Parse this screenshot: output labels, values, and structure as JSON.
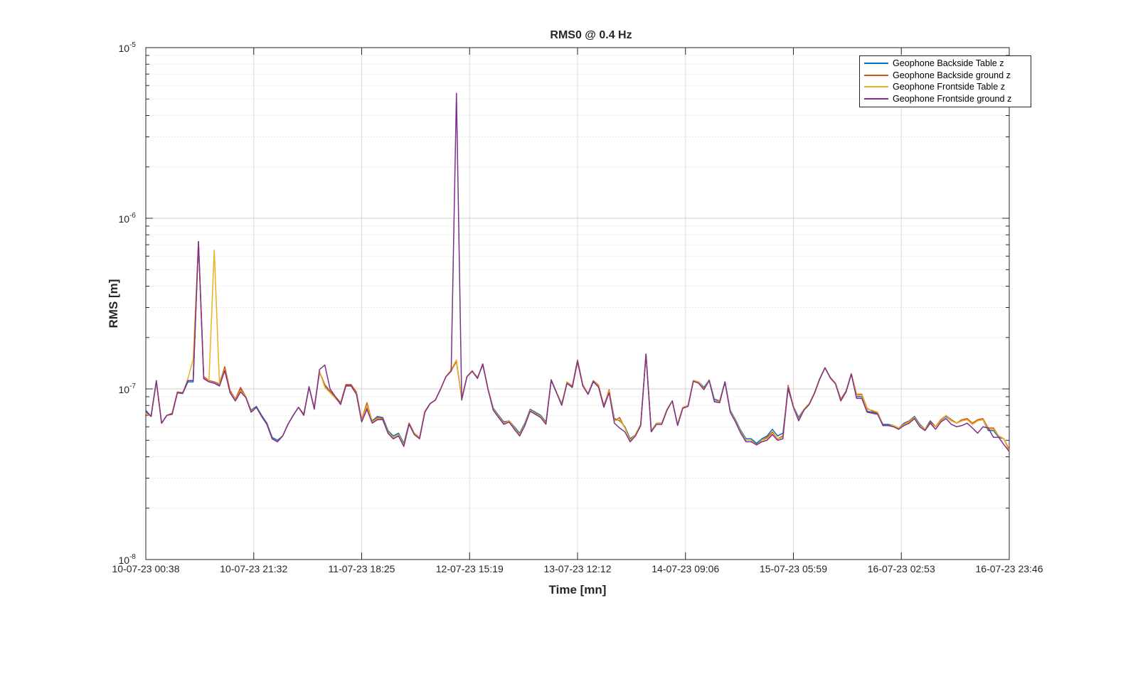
{
  "chart_data": {
    "type": "line",
    "title": "RMS0 @ 0.4 Hz",
    "xlabel": "Time [mn]",
    "ylabel": "RMS [m]",
    "y_scale": "log",
    "ylim": [
      1e-08,
      1e-05
    ],
    "y_ticks": [
      {
        "value": 1e-08,
        "base": "10",
        "exp": "-8"
      },
      {
        "value": 1e-07,
        "base": "10",
        "exp": "-7"
      },
      {
        "value": 1e-06,
        "base": "10",
        "exp": "-6"
      },
      {
        "value": 1e-05,
        "base": "10",
        "exp": "-5"
      }
    ],
    "x_ticks": [
      "10-07-23 00:38",
      "10-07-23 21:32",
      "11-07-23 18:25",
      "12-07-23 15:19",
      "13-07-23 12:12",
      "14-07-23 09:06",
      "15-07-23 05:59",
      "16-07-23 02:53",
      "16-07-23 23:46"
    ],
    "x_start": "10-07-23 00:38",
    "x_end": "16-07-23 23:46",
    "grid": true,
    "legend_position": "top-right",
    "samples_per_series": 160,
    "series": [
      {
        "name": "Geophone Backside Table z",
        "color": "#0072BD",
        "values": [
          7.5e-08,
          6.9e-08,
          1.1e-07,
          6.3e-08,
          7e-08,
          7.1e-08,
          9.5e-08,
          9.4e-08,
          1.1e-07,
          1.1e-07,
          7.3e-07,
          1.15e-07,
          1.1e-07,
          1.08e-07,
          1.05e-07,
          1.3e-07,
          9.6e-08,
          8.6e-08,
          1e-07,
          9e-08,
          7.5e-08,
          7.9e-08,
          7e-08,
          6.3e-08,
          5.2e-08,
          5e-08,
          5.3e-08,
          6.2e-08,
          7e-08,
          7.8e-08,
          7.1e-08,
          1.02e-07,
          7.8e-08,
          1.25e-07,
          1.05e-07,
          9.6e-08,
          9e-08,
          8.3e-08,
          1.05e-07,
          1.05e-07,
          9.5e-08,
          6.5e-08,
          7.8e-08,
          6.5e-08,
          6.9e-08,
          6.8e-08,
          5.7e-08,
          5.3e-08,
          5.5e-08,
          4.8e-08,
          6.3e-08,
          5.5e-08,
          5.2e-08,
          7.4e-08,
          8.2e-08,
          8.6e-08,
          1e-07,
          1.18e-07,
          1.28e-07,
          1.45e-07,
          8.8e-08,
          1.18e-07,
          1.27e-07,
          1.17e-07,
          1.38e-07,
          1e-07,
          7.7e-08,
          7e-08,
          6.4e-08,
          6.5e-08,
          6e-08,
          5.5e-08,
          6.3e-08,
          7.6e-08,
          7.3e-08,
          7e-08,
          6.4e-08,
          1.12e-07,
          9.5e-08,
          8.2e-08,
          1.08e-07,
          1.02e-07,
          1.45e-07,
          1.05e-07,
          9.3e-08,
          1.1e-07,
          1.03e-07,
          8e-08,
          9.7e-08,
          6.7e-08,
          6.5e-08,
          6e-08,
          5.1e-08,
          5.4e-08,
          6.2e-08,
          1.6e-07,
          5.7e-08,
          6.3e-08,
          6.3e-08,
          7.6e-08,
          8.5e-08,
          6.2e-08,
          7.8e-08,
          8e-08,
          1.12e-07,
          1.1e-07,
          1.02e-07,
          1.13e-07,
          8.7e-08,
          8.5e-08,
          1.1e-07,
          7.5e-08,
          6.6e-08,
          5.7e-08,
          5.1e-08,
          5.1e-08,
          4.8e-08,
          5.1e-08,
          5.3e-08,
          5.8e-08,
          5.3e-08,
          5.5e-08,
          1e-07,
          7.9e-08,
          6.8e-08,
          7.6e-08,
          8.2e-08,
          9.5e-08,
          1.15e-07,
          1.33e-07,
          1.17e-07,
          1.08e-07,
          8.7e-08,
          9.7e-08,
          1.23e-07,
          9e-08,
          9e-08,
          7.4e-08,
          7.3e-08,
          7.2e-08,
          6.2e-08,
          6.2e-08,
          6.1e-08,
          5.9e-08,
          6.3e-08,
          6.5e-08,
          6.9e-08,
          6.2e-08,
          5.8e-08,
          6.5e-08,
          6e-08,
          6.5e-08,
          6.9e-08,
          6.5e-08,
          6.3e-08,
          6.5e-08,
          6.6e-08,
          6.2e-08,
          6.5e-08,
          6.6e-08,
          5.7e-08,
          5.7e-08,
          5.2e-08,
          5.1e-08,
          4.3e-08
        ]
      },
      {
        "name": "Geophone Backside ground z",
        "color": "#D95319",
        "values": [
          7.3e-08,
          6.9e-08,
          1.1e-07,
          6.3e-08,
          7e-08,
          7.2e-08,
          9.6e-08,
          9.5e-08,
          1.12e-07,
          1.12e-07,
          7.3e-07,
          1.18e-07,
          1.12e-07,
          1.1e-07,
          1.07e-07,
          1.35e-07,
          9.8e-08,
          8.7e-08,
          1.02e-07,
          9e-08,
          7.4e-08,
          7.8e-08,
          6.9e-08,
          6.2e-08,
          5.1e-08,
          4.9e-08,
          5.3e-08,
          6.2e-08,
          7e-08,
          7.8e-08,
          7.1e-08,
          1.02e-07,
          7.8e-08,
          1.26e-07,
          1.06e-07,
          9.7e-08,
          9e-08,
          8.3e-08,
          1.06e-07,
          1.06e-07,
          9.6e-08,
          6.6e-08,
          8.3e-08,
          6.4e-08,
          6.8e-08,
          6.7e-08,
          5.6e-08,
          5.2e-08,
          5.4e-08,
          4.7e-08,
          6.3e-08,
          5.5e-08,
          5.2e-08,
          7.4e-08,
          8.2e-08,
          8.6e-08,
          1e-07,
          1.18e-07,
          1.28e-07,
          1.45e-07,
          8.8e-08,
          1.18e-07,
          1.28e-07,
          1.16e-07,
          1.4e-07,
          1e-07,
          7.6e-08,
          6.9e-08,
          6.3e-08,
          6.5e-08,
          5.9e-08,
          5.4e-08,
          6.2e-08,
          7.5e-08,
          7.2e-08,
          6.9e-08,
          6.3e-08,
          1.13e-07,
          9.6e-08,
          8.1e-08,
          1.1e-07,
          1.04e-07,
          1.48e-07,
          1.06e-07,
          9.4e-08,
          1.12e-07,
          1.05e-07,
          7.9e-08,
          9.9e-08,
          6.5e-08,
          6.8e-08,
          5.9e-08,
          5e-08,
          5.4e-08,
          6.2e-08,
          1.6e-07,
          5.7e-08,
          6.3e-08,
          6.3e-08,
          7.6e-08,
          8.5e-08,
          6.2e-08,
          7.8e-08,
          8e-08,
          1.12e-07,
          1.1e-07,
          1e-07,
          1.13e-07,
          8.5e-08,
          8.5e-08,
          1.1e-07,
          7.4e-08,
          6.5e-08,
          5.6e-08,
          5e-08,
          5e-08,
          4.7e-08,
          5e-08,
          5.2e-08,
          5.6e-08,
          5.1e-08,
          5.3e-08,
          1.05e-07,
          7.9e-08,
          6.6e-08,
          7.6e-08,
          8.2e-08,
          9.5e-08,
          1.15e-07,
          1.33e-07,
          1.17e-07,
          1.08e-07,
          8.7e-08,
          9.7e-08,
          1.23e-07,
          9.3e-08,
          9.3e-08,
          7.7e-08,
          7.4e-08,
          7.3e-08,
          6.1e-08,
          6.1e-08,
          6.1e-08,
          5.9e-08,
          6.2e-08,
          6.5e-08,
          6.8e-08,
          6.1e-08,
          5.8e-08,
          6.4e-08,
          6e-08,
          6.6e-08,
          7e-08,
          6.6e-08,
          6.3e-08,
          6.6e-08,
          6.7e-08,
          6.3e-08,
          6.6e-08,
          6.7e-08,
          5.9e-08,
          5.9e-08,
          5.3e-08,
          5.1e-08,
          4.4e-08
        ]
      },
      {
        "name": "Geophone Frontside Table z",
        "color": "#EDB120",
        "values": [
          7.2e-08,
          6.9e-08,
          1.1e-07,
          6.3e-08,
          7e-08,
          7.1e-08,
          9.5e-08,
          9.4e-08,
          1.15e-07,
          1.5e-07,
          7.3e-07,
          1.15e-07,
          1.12e-07,
          6.5e-07,
          1.05e-07,
          1.3e-07,
          9.6e-08,
          8.6e-08,
          9.8e-08,
          9e-08,
          7.4e-08,
          7.8e-08,
          6.9e-08,
          6.2e-08,
          5.1e-08,
          4.9e-08,
          5.3e-08,
          6.2e-08,
          7e-08,
          7.8e-08,
          7e-08,
          1.02e-07,
          7.8e-08,
          1.27e-07,
          1.02e-07,
          9.5e-08,
          8.8e-08,
          8.2e-08,
          1.04e-07,
          1.04e-07,
          9.4e-08,
          6.5e-08,
          8e-08,
          6.4e-08,
          6.7e-08,
          6.6e-08,
          5.6e-08,
          5.2e-08,
          5.4e-08,
          4.7e-08,
          6.2e-08,
          5.5e-08,
          5.2e-08,
          7.4e-08,
          8.2e-08,
          8.6e-08,
          1e-07,
          1.18e-07,
          1.3e-07,
          1.48e-07,
          8.8e-08,
          1.18e-07,
          1.28e-07,
          1.16e-07,
          1.4e-07,
          1e-07,
          7.6e-08,
          6.9e-08,
          6.3e-08,
          6.5e-08,
          5.9e-08,
          5.4e-08,
          6.2e-08,
          7.5e-08,
          7.2e-08,
          6.9e-08,
          6.3e-08,
          1.13e-07,
          9.6e-08,
          8.1e-08,
          1.1e-07,
          1.02e-07,
          1.45e-07,
          1.05e-07,
          9.4e-08,
          1.12e-07,
          1.03e-07,
          7.8e-08,
          9.7e-08,
          6.5e-08,
          6.6e-08,
          5.9e-08,
          5e-08,
          5.4e-08,
          6.2e-08,
          1.6e-07,
          5.7e-08,
          6.3e-08,
          6.3e-08,
          7.6e-08,
          8.5e-08,
          6.2e-08,
          7.8e-08,
          8e-08,
          1.12e-07,
          1.1e-07,
          1e-07,
          1.13e-07,
          8.5e-08,
          8.4e-08,
          1.1e-07,
          7.4e-08,
          6.5e-08,
          5.6e-08,
          5e-08,
          5e-08,
          4.7e-08,
          5e-08,
          5.1e-08,
          5.5e-08,
          5.1e-08,
          5.2e-08,
          1.03e-07,
          7.9e-08,
          6.6e-08,
          7.6e-08,
          8.2e-08,
          9.5e-08,
          1.15e-07,
          1.33e-07,
          1.17e-07,
          1.08e-07,
          8.6e-08,
          9.6e-08,
          1.23e-07,
          9.1e-08,
          9.2e-08,
          7.6e-08,
          7.5e-08,
          7.3e-08,
          6.1e-08,
          6.1e-08,
          6.1e-08,
          5.9e-08,
          6.2e-08,
          6.4e-08,
          6.8e-08,
          6.1e-08,
          5.8e-08,
          6.3e-08,
          6e-08,
          6.5e-08,
          7e-08,
          6.5e-08,
          6.3e-08,
          6.5e-08,
          6.6e-08,
          6.2e-08,
          6.5e-08,
          6.6e-08,
          5.8e-08,
          5.8e-08,
          5.3e-08,
          5.1e-08,
          4.3e-08
        ]
      },
      {
        "name": "Geophone Frontside ground z",
        "color": "#7E2F8E",
        "values": [
          7.4e-08,
          6.9e-08,
          1.12e-07,
          6.3e-08,
          7e-08,
          7.1e-08,
          9.5e-08,
          9.4e-08,
          1.12e-07,
          1.12e-07,
          7.3e-07,
          1.15e-07,
          1.1e-07,
          1.08e-07,
          1.04e-07,
          1.28e-07,
          9.5e-08,
          8.5e-08,
          9.6e-08,
          8.9e-08,
          7.3e-08,
          7.8e-08,
          6.9e-08,
          6.2e-08,
          5.1e-08,
          4.9e-08,
          5.3e-08,
          6.2e-08,
          7e-08,
          7.8e-08,
          7e-08,
          1.03e-07,
          7.6e-08,
          1.3e-07,
          1.38e-07,
          1e-07,
          9e-08,
          8.1e-08,
          1.04e-07,
          1.04e-07,
          9.3e-08,
          6.4e-08,
          7.6e-08,
          6.3e-08,
          6.6e-08,
          6.6e-08,
          5.5e-08,
          5.1e-08,
          5.3e-08,
          4.6e-08,
          6.2e-08,
          5.4e-08,
          5.1e-08,
          7.3e-08,
          8.2e-08,
          8.6e-08,
          1e-07,
          1.18e-07,
          1.27e-07,
          5.4e-06,
          8.6e-08,
          1.18e-07,
          1.27e-07,
          1.15e-07,
          1.4e-07,
          9.9e-08,
          7.5e-08,
          6.8e-08,
          6.2e-08,
          6.4e-08,
          5.8e-08,
          5.3e-08,
          6.1e-08,
          7.4e-08,
          7.1e-08,
          6.8e-08,
          6.2e-08,
          1.13e-07,
          9.5e-08,
          8e-08,
          1.08e-07,
          1.02e-07,
          1.45e-07,
          1.04e-07,
          9.3e-08,
          1.11e-07,
          1.02e-07,
          7.8e-08,
          9.5e-08,
          6.3e-08,
          5.9e-08,
          5.6e-08,
          4.9e-08,
          5.3e-08,
          6.1e-08,
          1.6e-07,
          5.6e-08,
          6.2e-08,
          6.2e-08,
          7.5e-08,
          8.5e-08,
          6.1e-08,
          7.7e-08,
          7.9e-08,
          1.11e-07,
          1.08e-07,
          9.9e-08,
          1.12e-07,
          8.4e-08,
          8.3e-08,
          1.1e-07,
          7.3e-08,
          6.4e-08,
          5.5e-08,
          4.9e-08,
          4.9e-08,
          4.7e-08,
          4.9e-08,
          5e-08,
          5.4e-08,
          5e-08,
          5.1e-08,
          1.02e-07,
          7.8e-08,
          6.5e-08,
          7.5e-08,
          8.1e-08,
          9.4e-08,
          1.14e-07,
          1.33e-07,
          1.16e-07,
          1.07e-07,
          8.5e-08,
          9.6e-08,
          1.22e-07,
          8.8e-08,
          8.8e-08,
          7.3e-08,
          7.2e-08,
          7.1e-08,
          6.1e-08,
          6.1e-08,
          6e-08,
          5.8e-08,
          6.1e-08,
          6.3e-08,
          6.7e-08,
          6e-08,
          5.7e-08,
          6.3e-08,
          5.8e-08,
          6.4e-08,
          6.7e-08,
          6.2e-08,
          6e-08,
          6.1e-08,
          6.3e-08,
          5.9e-08,
          5.5e-08,
          6e-08,
          5.9e-08,
          5.2e-08,
          5.2e-08,
          4.7e-08,
          4.3e-08
        ]
      }
    ]
  }
}
